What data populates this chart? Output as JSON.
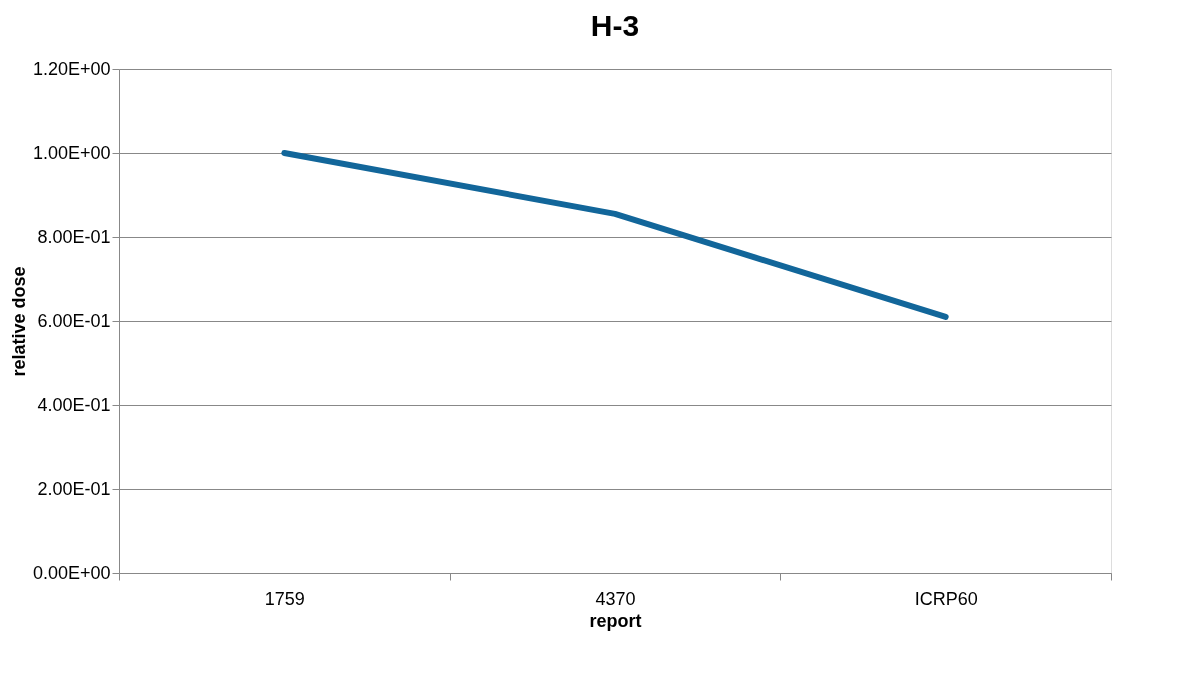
{
  "chart_data": {
    "type": "line",
    "title": "H-3",
    "xlabel": "report",
    "ylabel": "relative dose",
    "categories": [
      "1759",
      "4370",
      "ICRP60"
    ],
    "series": [
      {
        "color": "#12669a",
        "values": [
          1.0,
          0.855,
          0.61
        ]
      }
    ],
    "ylim": [
      0,
      1.2
    ],
    "yticks": [
      {
        "value": 0,
        "label": "0.00E+00"
      },
      {
        "value": 0.2,
        "label": "2.00E-01"
      },
      {
        "value": 0.4,
        "label": "4.00E-01"
      },
      {
        "value": 0.6,
        "label": "6.00E-01"
      },
      {
        "value": 0.8,
        "label": "8.00E-01"
      },
      {
        "value": 1.0,
        "label": "1.00E+00"
      },
      {
        "value": 1.2,
        "label": "1.20E+00"
      }
    ],
    "grid": "y",
    "marker": "none",
    "line_style": "solid"
  }
}
